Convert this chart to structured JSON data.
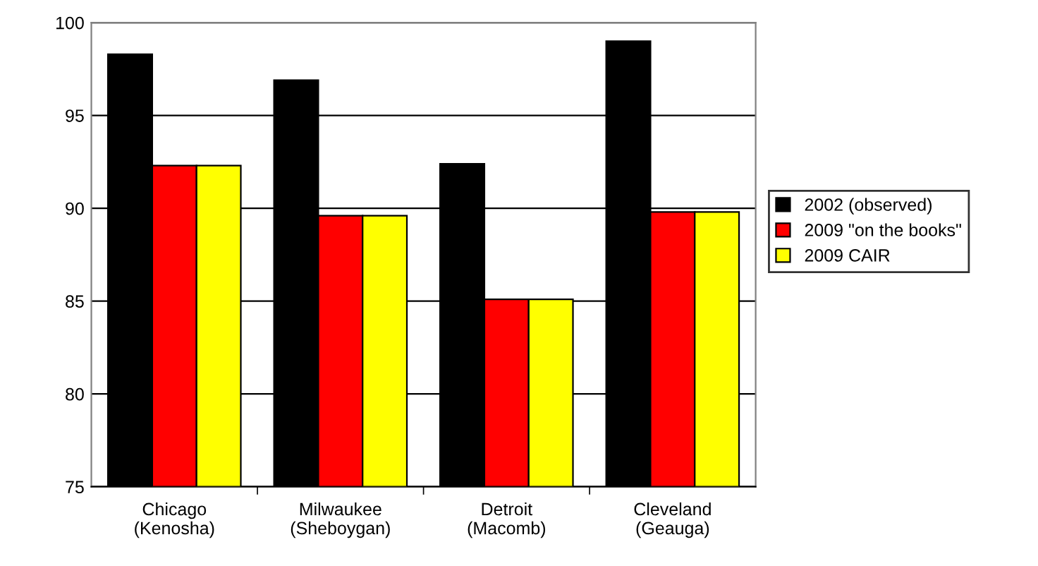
{
  "chart_data": {
    "type": "bar",
    "categories": [
      "Chicago\n(Kenosha)",
      "Milwaukee\n(Sheboygan)",
      "Detroit\n(Macomb)",
      "Cleveland\n(Geauga)"
    ],
    "series": [
      {
        "name": "2002 (observed)",
        "color": "#000000",
        "values": [
          98.3,
          96.9,
          92.4,
          99.0
        ]
      },
      {
        "name": "2009 \"on the books\"",
        "color": "#ff0000",
        "values": [
          92.3,
          89.6,
          85.1,
          89.8
        ]
      },
      {
        "name": "2009 CAIR",
        "color": "#ffff00",
        "values": [
          92.3,
          89.6,
          85.1,
          89.8
        ]
      }
    ],
    "ylim": [
      75,
      100
    ],
    "yticks": [
      75,
      80,
      85,
      90,
      95,
      100
    ],
    "grid": "y",
    "legend": "right"
  }
}
